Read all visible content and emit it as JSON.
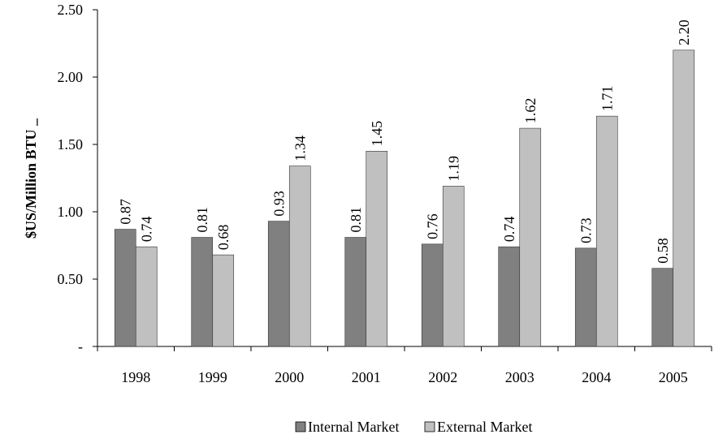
{
  "chart_data": {
    "type": "bar",
    "y_label": "$US/Million BTU _",
    "categories": [
      "1998",
      "1999",
      "2000",
      "2001",
      "2002",
      "2003",
      "2004",
      "2005"
    ],
    "series": [
      {
        "name": "Internal Market",
        "color": "#808080",
        "values": [
          0.87,
          0.81,
          0.93,
          0.81,
          0.76,
          0.74,
          0.73,
          0.58
        ],
        "value_labels": [
          "0.87",
          "0.81",
          "0.93",
          "0.81",
          "0.76",
          "0.74",
          "0.73",
          "0.58"
        ]
      },
      {
        "name": "External Market",
        "color": "#c0c0c0",
        "values": [
          0.74,
          0.68,
          1.34,
          1.45,
          1.19,
          1.62,
          1.71,
          2.2
        ],
        "value_labels": [
          "0.74",
          "0.68",
          "1.34",
          "1.45",
          "1.19",
          "1.62",
          "1.71",
          "2.20"
        ]
      }
    ],
    "ylim": [
      0,
      2.5
    ],
    "yticks": [
      {
        "value": 0,
        "label": "-"
      },
      {
        "value": 0.5,
        "label": "0.50"
      },
      {
        "value": 1,
        "label": "1.00"
      },
      {
        "value": 1.5,
        "label": "1.50"
      },
      {
        "value": 2,
        "label": "2.00"
      },
      {
        "value": 2.5,
        "label": "2.50"
      }
    ],
    "legend": "bottom"
  }
}
